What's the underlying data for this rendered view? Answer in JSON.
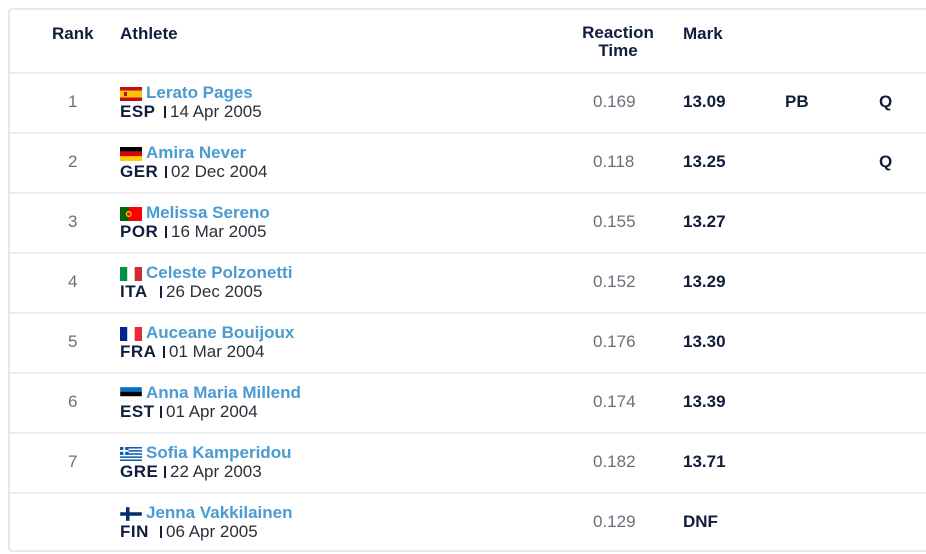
{
  "headers": {
    "rank": "Rank",
    "athlete": "Athlete",
    "reaction_time_line1": "Reaction",
    "reaction_time_line2": "Time",
    "mark": "Mark"
  },
  "rows": [
    {
      "rank": "1",
      "flag": "ESP",
      "name": "Lerato Pages",
      "nat": "ESP",
      "dob": "14 Apr 2005",
      "reaction": "0.169",
      "mark": "13.09",
      "pb": "PB",
      "q": "Q"
    },
    {
      "rank": "2",
      "flag": "GER",
      "name": "Amira Never",
      "nat": "GER",
      "dob": "02 Dec 2004",
      "reaction": "0.118",
      "mark": "13.25",
      "pb": "",
      "q": "Q"
    },
    {
      "rank": "3",
      "flag": "POR",
      "name": "Melissa Sereno",
      "nat": "POR",
      "dob": "16 Mar 2005",
      "reaction": "0.155",
      "mark": "13.27",
      "pb": "",
      "q": ""
    },
    {
      "rank": "4",
      "flag": "ITA",
      "name": "Celeste Polzonetti",
      "nat": "ITA",
      "dob": "26 Dec 2005",
      "reaction": "0.152",
      "mark": "13.29",
      "pb": "",
      "q": ""
    },
    {
      "rank": "5",
      "flag": "FRA",
      "name": "Auceane Bouijoux",
      "nat": "FRA",
      "dob": "01 Mar 2004",
      "reaction": "0.176",
      "mark": "13.30",
      "pb": "",
      "q": ""
    },
    {
      "rank": "6",
      "flag": "EST",
      "name": "Anna Maria Millend",
      "nat": "EST",
      "dob": "01 Apr 2004",
      "reaction": "0.174",
      "mark": "13.39",
      "pb": "",
      "q": ""
    },
    {
      "rank": "7",
      "flag": "GRE",
      "name": "Sofia Kamperidou",
      "nat": "GRE",
      "dob": "22 Apr 2003",
      "reaction": "0.182",
      "mark": "13.71",
      "pb": "",
      "q": ""
    },
    {
      "rank": "",
      "flag": "FIN",
      "name": "Jenna Vakkilainen",
      "nat": "FIN",
      "dob": "06 Apr 2005",
      "reaction": "0.129",
      "mark": "DNF",
      "pb": "",
      "q": ""
    }
  ],
  "colors": {
    "name_link": "#4a9bd1",
    "text_dark": "#101e3c",
    "text_muted": "#6a6f7a",
    "border": "#ececec"
  }
}
